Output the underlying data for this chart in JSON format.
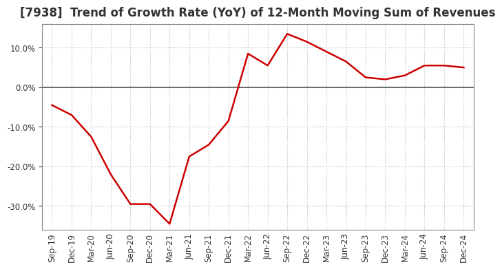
{
  "title": "[7938]  Trend of Growth Rate (YoY) of 12-Month Moving Sum of Revenues",
  "labels": [
    "Sep-19",
    "Dec-19",
    "Mar-20",
    "Jun-20",
    "Sep-20",
    "Dec-20",
    "Mar-21",
    "Jun-21",
    "Sep-21",
    "Dec-21",
    "Mar-22",
    "Jun-22",
    "Sep-22",
    "Dec-22",
    "Mar-23",
    "Jun-23",
    "Sep-23",
    "Dec-23",
    "Mar-24",
    "Jun-24",
    "Sep-24",
    "Dec-24"
  ],
  "values": [
    -4.5,
    -7.0,
    -12.5,
    -22.0,
    -29.5,
    -29.5,
    -34.5,
    -17.5,
    -14.5,
    -8.5,
    8.5,
    5.5,
    13.5,
    11.5,
    9.0,
    6.5,
    2.5,
    2.0,
    3.0,
    5.5,
    5.5,
    5.0
  ],
  "line_color": "#cc0000",
  "background_color": "#ffffff",
  "plot_bg_color": "#ffffff",
  "grid_color": "#bbbbbb",
  "zero_line_color": "#555555",
  "ylim": [
    -36,
    16
  ],
  "yticks": [
    -30.0,
    -20.0,
    -10.0,
    0.0,
    10.0
  ],
  "title_fontsize": 12,
  "tick_fontsize": 8.5
}
